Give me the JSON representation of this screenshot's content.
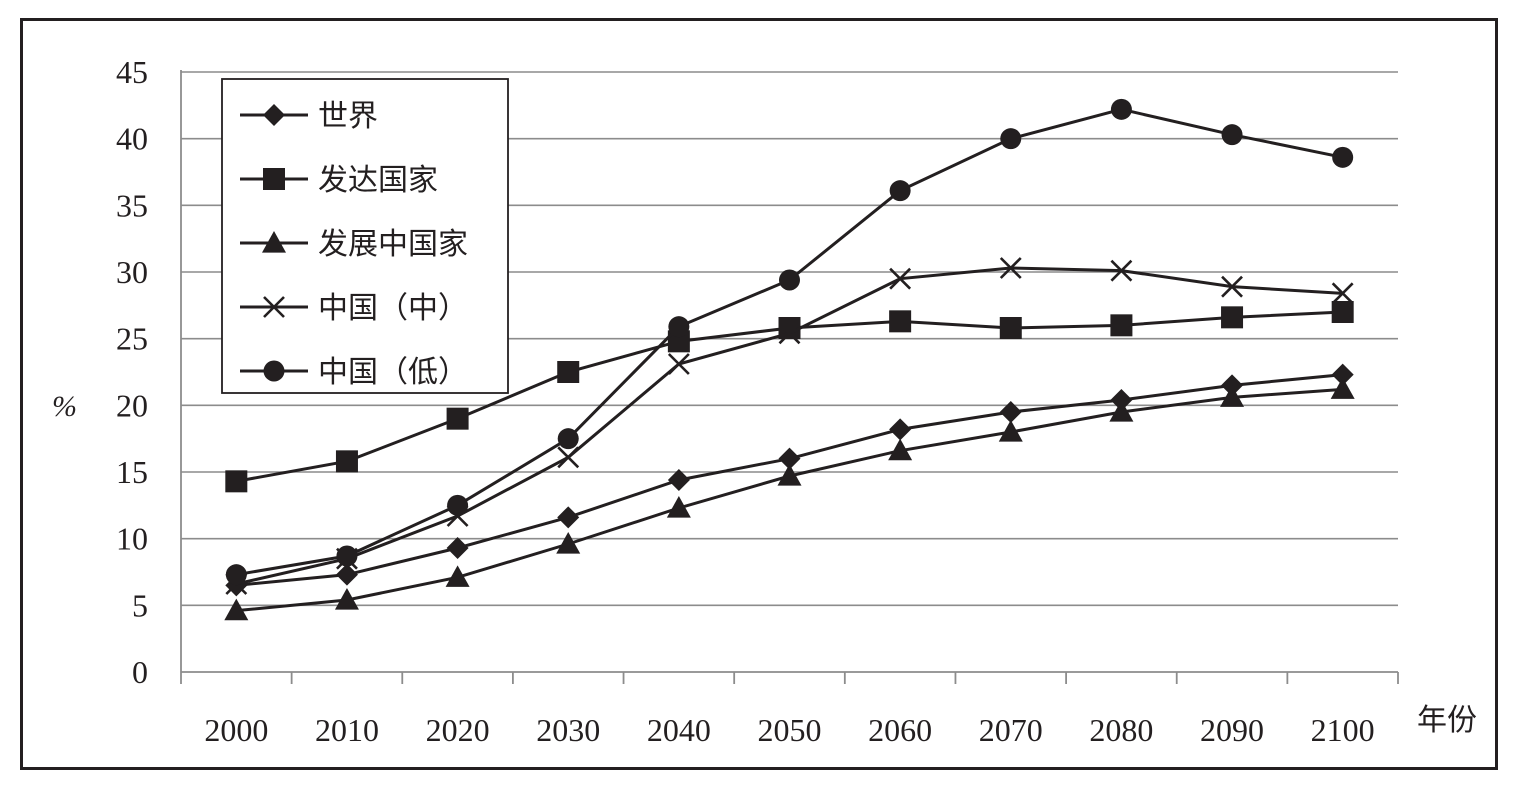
{
  "chart_data": {
    "type": "line",
    "ylabel": "%",
    "xlabel": "年份",
    "ylim": [
      0,
      45
    ],
    "yticks": [
      0,
      5,
      10,
      15,
      20,
      25,
      30,
      35,
      40,
      45
    ],
    "categories": [
      "2000",
      "2010",
      "2020",
      "2030",
      "2040",
      "2050",
      "2060",
      "2070",
      "2080",
      "2090",
      "2100"
    ],
    "grid": "horizontal",
    "legend_position": "top-left",
    "series": [
      {
        "name": "世界",
        "marker": "diamond",
        "values": [
          6.5,
          7.3,
          9.3,
          11.6,
          14.4,
          16.0,
          18.2,
          19.5,
          20.4,
          21.5,
          22.3
        ]
      },
      {
        "name": "发达国家",
        "marker": "square",
        "values": [
          14.3,
          15.8,
          19.0,
          22.5,
          24.8,
          25.8,
          26.3,
          25.8,
          26.0,
          26.6,
          27.0
        ]
      },
      {
        "name": "发展中国家",
        "marker": "triangle",
        "values": [
          4.6,
          5.4,
          7.1,
          9.6,
          12.3,
          14.7,
          16.6,
          18.0,
          19.5,
          20.6,
          21.2
        ]
      },
      {
        "name": "中国（中）",
        "marker": "x",
        "values": [
          6.6,
          8.5,
          11.7,
          16.1,
          23.1,
          25.4,
          29.5,
          30.3,
          30.1,
          28.9,
          28.4
        ]
      },
      {
        "name": "中国（低）",
        "marker": "circle",
        "values": [
          7.3,
          8.7,
          12.5,
          17.5,
          25.9,
          29.4,
          36.1,
          40.0,
          42.2,
          40.3,
          38.6
        ]
      }
    ],
    "colors": {
      "line": "#231f20",
      "grid": "#8c8c8c",
      "frame": "#231f20"
    }
  }
}
